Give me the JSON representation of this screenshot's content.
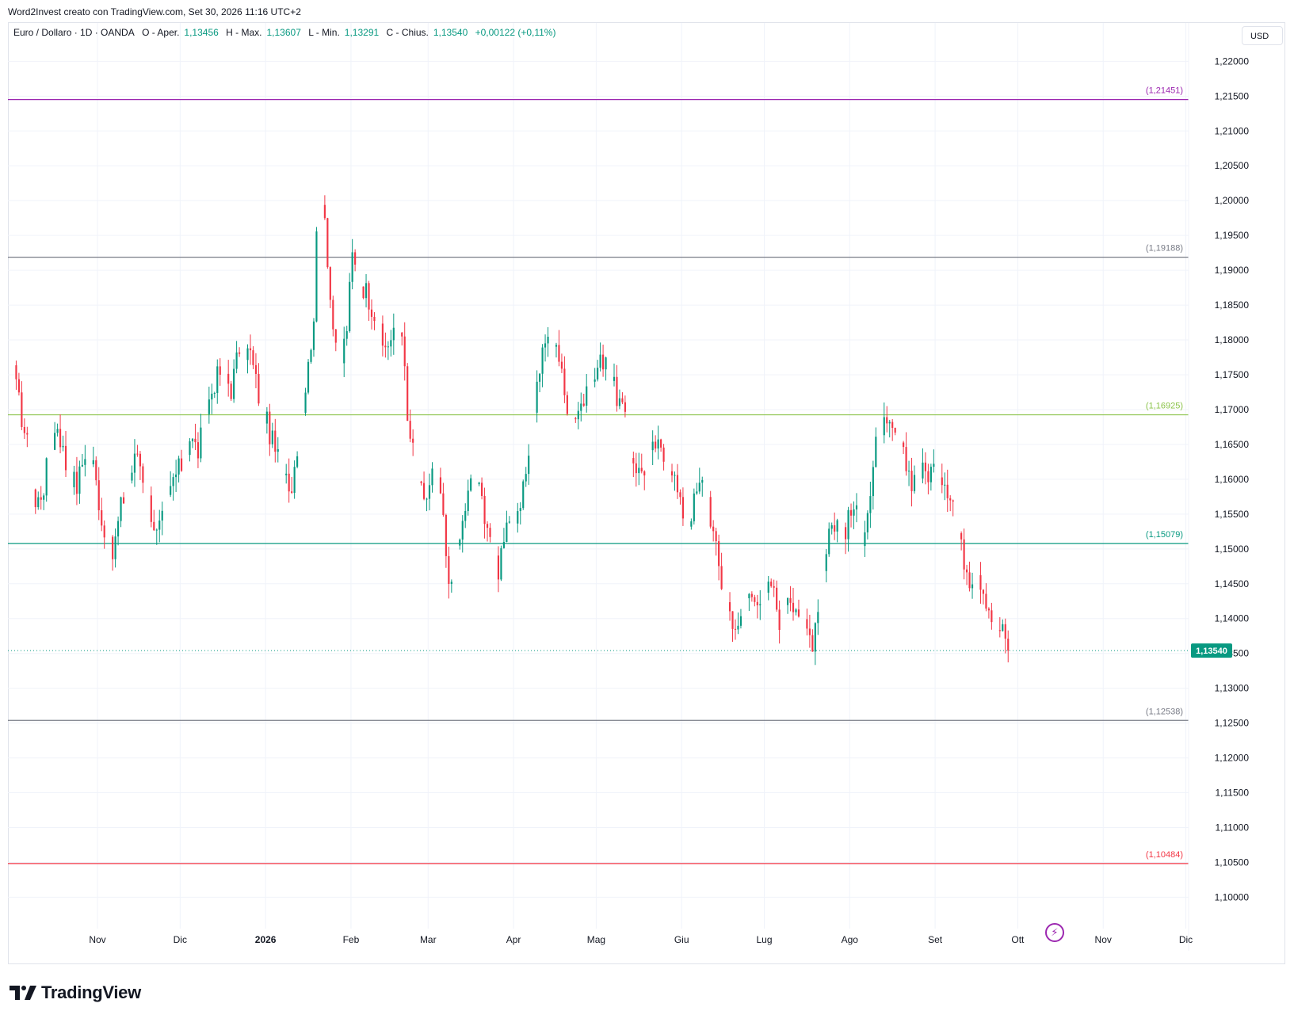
{
  "caption": "Word2Invest creato con TradingView.com, Set 30, 2026 11:16 UTC+2",
  "legend": {
    "symbol": "Euro / Dollaro · 1D · OANDA",
    "open_label": "O - Aper.",
    "open": "1,13456",
    "high_label": "H - Max.",
    "high": "1,13607",
    "low_label": "L - Min.",
    "low": "1,13291",
    "close_label": "C - Chius.",
    "close": "1,13540",
    "change": "+0,00122 (+0,11%)"
  },
  "currency_button": "USD",
  "logo_text": "TradingView",
  "colors": {
    "up": "#089981",
    "down": "#f23645",
    "grid": "#f0f3fa",
    "price_line": "#089981"
  },
  "chart_data": {
    "type": "candlestick",
    "y_range": [
      1.0955,
      1.2255
    ],
    "y_ticks": [
      1.1,
      1.105,
      1.11,
      1.115,
      1.12,
      1.125,
      1.13,
      1.135,
      1.14,
      1.145,
      1.15,
      1.155,
      1.16,
      1.165,
      1.17,
      1.175,
      1.18,
      1.185,
      1.19,
      1.195,
      1.2,
      1.205,
      1.21,
      1.215,
      1.22
    ],
    "y_tick_labels": [
      "1,10000",
      "1,10500",
      "1,11000",
      "1,11500",
      "1,12000",
      "1,12500",
      "1,13000",
      "1,13500",
      "1,14000",
      "1,14500",
      "1,15000",
      "1,15500",
      "1,16000",
      "1,16500",
      "1,17000",
      "1,17500",
      "1,18000",
      "1,18500",
      "1,19000",
      "1,19500",
      "1,20000",
      "1,20500",
      "1,21000",
      "1,21500",
      "1,22000"
    ],
    "x_labels": [
      "Nov",
      "Dic",
      "2026",
      "Feb",
      "Mar",
      "Apr",
      "Mag",
      "Giu",
      "Lug",
      "Ago",
      "Set",
      "Ott",
      "Nov",
      "Dic"
    ],
    "x_label_days": [
      29.5,
      59.5,
      90.5,
      121.5,
      149.5,
      180.5,
      210.5,
      241.5,
      271.5,
      302.5,
      333.5,
      363.5,
      394.5,
      424.5
    ],
    "x_range_days": [
      -3,
      425.5
    ],
    "horizontal_levels": [
      {
        "value": 1.21451,
        "label": "(1,21451)",
        "color": "#9c27b0"
      },
      {
        "value": 1.19188,
        "label": "(1,19188)",
        "color": "#787b86"
      },
      {
        "value": 1.16925,
        "label": "(1,16925)",
        "color": "#8bc34a"
      },
      {
        "value": 1.15079,
        "label": "(1,15079)",
        "color": "#089981"
      },
      {
        "value": 1.12538,
        "label": "(1,12538)",
        "color": "#787b86"
      },
      {
        "value": 1.10484,
        "label": "(1,10484)",
        "color": "#f23645"
      }
    ],
    "last_price": {
      "value": 1.1354,
      "label": "1,13540"
    },
    "waypoints": [
      [
        0,
        1.173
      ],
      [
        4,
        1.165
      ],
      [
        7,
        1.156
      ],
      [
        10,
        1.159
      ],
      [
        12,
        1.164
      ],
      [
        15,
        1.168
      ],
      [
        18,
        1.162
      ],
      [
        22,
        1.159
      ],
      [
        25,
        1.164
      ],
      [
        28,
        1.162
      ],
      [
        32,
        1.152
      ],
      [
        35,
        1.149
      ],
      [
        38,
        1.156
      ],
      [
        41,
        1.16
      ],
      [
        44,
        1.164
      ],
      [
        48,
        1.157
      ],
      [
        51,
        1.152
      ],
      [
        54,
        1.155
      ],
      [
        57,
        1.16
      ],
      [
        60,
        1.162
      ],
      [
        63,
        1.166
      ],
      [
        66,
        1.164
      ],
      [
        69,
        1.17
      ],
      [
        72,
        1.174
      ],
      [
        75,
        1.176
      ],
      [
        78,
        1.173
      ],
      [
        81,
        1.179
      ],
      [
        85,
        1.178
      ],
      [
        88,
        1.172
      ],
      [
        91,
        1.168
      ],
      [
        94,
        1.164
      ],
      [
        97,
        1.162
      ],
      [
        100,
        1.159
      ],
      [
        103,
        1.168
      ],
      [
        106,
        1.176
      ],
      [
        108,
        1.184
      ],
      [
        110,
        1.204
      ],
      [
        112,
        1.198
      ],
      [
        114,
        1.186
      ],
      [
        116,
        1.178
      ],
      [
        118,
        1.177
      ],
      [
        120,
        1.182
      ],
      [
        122,
        1.192
      ],
      [
        124,
        1.189
      ],
      [
        127,
        1.187
      ],
      [
        130,
        1.184
      ],
      [
        133,
        1.179
      ],
      [
        136,
        1.18
      ],
      [
        140,
        1.182
      ],
      [
        142,
        1.168
      ],
      [
        145,
        1.162
      ],
      [
        148,
        1.156
      ],
      [
        151,
        1.161
      ],
      [
        154,
        1.158
      ],
      [
        157,
        1.144
      ],
      [
        160,
        1.149
      ],
      [
        163,
        1.156
      ],
      [
        166,
        1.161
      ],
      [
        169,
        1.157
      ],
      [
        172,
        1.152
      ],
      [
        175,
        1.147
      ],
      [
        178,
        1.155
      ],
      [
        181,
        1.152
      ],
      [
        184,
        1.158
      ],
      [
        187,
        1.168
      ],
      [
        190,
        1.176
      ],
      [
        193,
        1.181
      ],
      [
        196,
        1.18
      ],
      [
        199,
        1.172
      ],
      [
        202,
        1.169
      ],
      [
        205,
        1.171
      ],
      [
        208,
        1.172
      ],
      [
        211,
        1.176
      ],
      [
        214,
        1.178
      ],
      [
        217,
        1.173
      ],
      [
        220,
        1.17
      ],
      [
        223,
        1.164
      ],
      [
        226,
        1.161
      ],
      [
        229,
        1.162
      ],
      [
        232,
        1.165
      ],
      [
        235,
        1.163
      ],
      [
        238,
        1.162
      ],
      [
        241,
        1.156
      ],
      [
        244,
        1.154
      ],
      [
        247,
        1.158
      ],
      [
        250,
        1.16
      ],
      [
        253,
        1.152
      ],
      [
        256,
        1.145
      ],
      [
        259,
        1.141
      ],
      [
        262,
        1.138
      ],
      [
        265,
        1.143
      ],
      [
        268,
        1.144
      ],
      [
        271,
        1.142
      ],
      [
        274,
        1.145
      ],
      [
        277,
        1.14
      ],
      [
        280,
        1.144
      ],
      [
        283,
        1.142
      ],
      [
        286,
        1.139
      ],
      [
        289,
        1.137
      ],
      [
        292,
        1.145
      ],
      [
        295,
        1.153
      ],
      [
        298,
        1.154
      ],
      [
        301,
        1.153
      ],
      [
        304,
        1.156
      ],
      [
        307,
        1.152
      ],
      [
        310,
        1.158
      ],
      [
        313,
        1.168
      ],
      [
        316,
        1.167
      ],
      [
        319,
        1.166
      ],
      [
        322,
        1.163
      ],
      [
        325,
        1.16
      ],
      [
        328,
        1.161
      ],
      [
        331,
        1.161
      ],
      [
        334,
        1.162
      ],
      [
        337,
        1.16
      ],
      [
        340,
        1.157
      ],
      [
        343,
        1.15
      ],
      [
        346,
        1.146
      ],
      [
        349,
        1.147
      ],
      [
        352,
        1.143
      ],
      [
        355,
        1.139
      ],
      [
        358,
        1.138
      ],
      [
        360,
        1.1354
      ]
    ]
  }
}
